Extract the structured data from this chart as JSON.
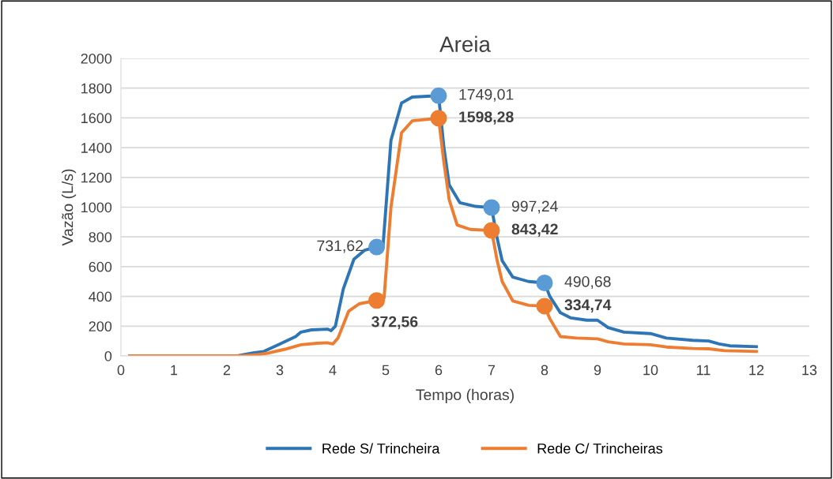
{
  "chart_data": {
    "type": "line",
    "title": "Areia",
    "xlabel": "Tempo (horas)",
    "ylabel": "Vazão (L/s)",
    "xlim": [
      0,
      13
    ],
    "xticks": [
      0,
      1,
      2,
      3,
      4,
      5,
      6,
      7,
      8,
      9,
      10,
      11,
      12,
      13
    ],
    "ylim": [
      0,
      2000
    ],
    "yticks": [
      0,
      200,
      400,
      600,
      800,
      1000,
      1200,
      1400,
      1600,
      1800,
      2000
    ],
    "grid": "y",
    "legend": "bottom",
    "line_style": "solid",
    "series": [
      {
        "name": "Rede S/ Trincheira",
        "color": "#2e75b6",
        "x": [
          0.17,
          2.2,
          2.5,
          2.7,
          3.0,
          3.3,
          3.4,
          3.6,
          3.9,
          3.97,
          4.05,
          4.2,
          4.4,
          4.6,
          4.83,
          4.95,
          5.1,
          5.3,
          5.5,
          6,
          6.1,
          6.2,
          6.4,
          6.7,
          7,
          7.1,
          7.2,
          7.4,
          7.7,
          8,
          8.1,
          8.3,
          8.5,
          8.8,
          9,
          9.2,
          9.5,
          10,
          10.3,
          10.8,
          11.1,
          11.3,
          11.5,
          12
        ],
        "values": [
          0,
          0,
          20,
          30,
          80,
          130,
          160,
          175,
          180,
          170,
          200,
          450,
          650,
          710,
          732,
          740,
          1450,
          1700,
          1740,
          1749,
          1400,
          1150,
          1030,
          1005,
          997,
          800,
          640,
          530,
          500,
          491,
          400,
          290,
          255,
          240,
          240,
          190,
          160,
          150,
          120,
          105,
          100,
          80,
          68,
          62
        ]
      },
      {
        "name": "Rede C/ Trincheiras",
        "color": "#ed7d31",
        "x": [
          0.17,
          2.3,
          2.6,
          2.8,
          3.1,
          3.4,
          3.7,
          3.9,
          4.0,
          4.1,
          4.3,
          4.5,
          4.83,
          4.97,
          5.1,
          5.3,
          5.5,
          6,
          6.1,
          6.2,
          6.35,
          6.6,
          7,
          7.1,
          7.2,
          7.4,
          7.7,
          8,
          8.1,
          8.3,
          8.6,
          9,
          9.2,
          9.5,
          10,
          10.3,
          10.8,
          11.1,
          11.4,
          12
        ],
        "values": [
          0,
          0,
          10,
          20,
          45,
          75,
          85,
          88,
          80,
          120,
          300,
          350,
          373,
          390,
          1000,
          1500,
          1580,
          1598,
          1300,
          1050,
          880,
          850,
          843,
          650,
          500,
          370,
          340,
          335,
          250,
          130,
          120,
          115,
          95,
          80,
          75,
          60,
          50,
          48,
          35,
          30
        ]
      },
      {
        "type": "scatter",
        "marker": "circle",
        "color": "#5b9bd5",
        "x": [
          4.83,
          6,
          7,
          8
        ],
        "values": [
          731.62,
          1749.01,
          997.24,
          490.68
        ],
        "value_labels": [
          "731,62",
          "1749,01",
          "997,24",
          "490,68"
        ]
      },
      {
        "type": "scatter",
        "marker": "circle",
        "color": "#ed7d31",
        "x": [
          4.83,
          6,
          7,
          8
        ],
        "values": [
          372.56,
          1598.28,
          843.42,
          334.74
        ],
        "value_labels": [
          "372,56",
          "1598,28",
          "843,42",
          "334,74"
        ]
      }
    ]
  }
}
